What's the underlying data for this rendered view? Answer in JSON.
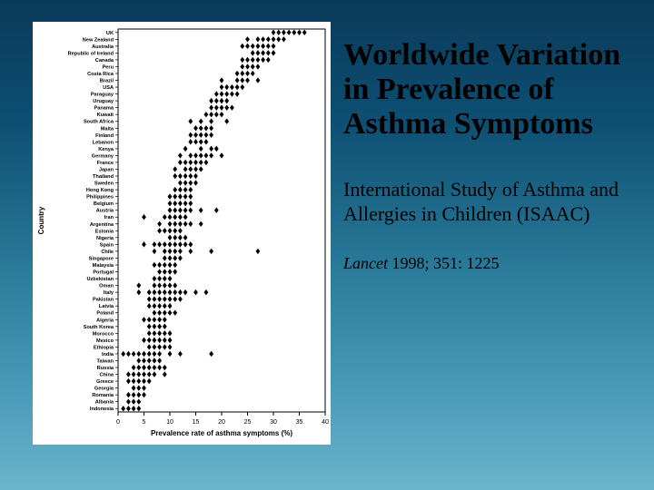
{
  "title": "Worldwide Variation in Prevalence of Asthma Symptoms",
  "subtitle": "International Study of Asthma and Allergies in Children (ISAAC)",
  "citation_journal": "Lancet",
  "citation_rest": " 1998; 351: 1225",
  "chart": {
    "type": "scatter",
    "xlabel": "Prevalence rate of asthma symptoms (%)",
    "ylabel": "Country",
    "xlim": [
      0,
      40
    ],
    "xtick_step": 5,
    "xticks": [
      0,
      5,
      10,
      15,
      20,
      25,
      30,
      35,
      40
    ],
    "label_fontsize": 8,
    "tick_fontsize": 7,
    "country_fontsize": 5.6,
    "marker": "diamond",
    "marker_size": 3.2,
    "marker_color": "#000000",
    "axis_color": "#000000",
    "background_color": "#ffffff",
    "countries": [
      "UK",
      "New Zealand",
      "Australia",
      "Republic of Ireland",
      "Canada",
      "Peru",
      "Costa Rica",
      "Brazil",
      "USA",
      "Paraguay",
      "Uruguay",
      "Panama",
      "Kuwait",
      "South Africa",
      "Malta",
      "Finland",
      "Lebanon",
      "Kenya",
      "Germany",
      "France",
      "Japan",
      "Thailand",
      "Sweden",
      "Hong Kong",
      "Philippines",
      "Belgium",
      "Austria",
      "Iran",
      "Argentina",
      "Estonia",
      "Nigeria",
      "Spain",
      "Chile",
      "Singapore",
      "Malaysia",
      "Portugal",
      "Uzbekistan",
      "Oman",
      "Italy",
      "Pakistan",
      "Latvia",
      "Poland",
      "Algeria",
      "South Korea",
      "Morocco",
      "Mexico",
      "Ethiopia",
      "India",
      "Taiwan",
      "Russia",
      "China",
      "Greece",
      "Georgia",
      "Romania",
      "Albania",
      "Indonesia"
    ],
    "points": [
      [
        30,
        31,
        32,
        33,
        34,
        35,
        36
      ],
      [
        25,
        27,
        28,
        29,
        30,
        31,
        32
      ],
      [
        24,
        25,
        26,
        27,
        28,
        29,
        30
      ],
      [
        26,
        27,
        28,
        29,
        30
      ],
      [
        24,
        25,
        26,
        27,
        28,
        29
      ],
      [
        24,
        25,
        26,
        27
      ],
      [
        23,
        24,
        25,
        26
      ],
      [
        20,
        23,
        24,
        25,
        27
      ],
      [
        20,
        21,
        22,
        23,
        24
      ],
      [
        19,
        20,
        21,
        22,
        23
      ],
      [
        18,
        19,
        20,
        21
      ],
      [
        18,
        19,
        20,
        21,
        22
      ],
      [
        17,
        18,
        19,
        20
      ],
      [
        14,
        16,
        18,
        21
      ],
      [
        15,
        16,
        17,
        18
      ],
      [
        14,
        15,
        16,
        17,
        18
      ],
      [
        14,
        15,
        16,
        17
      ],
      [
        13,
        16,
        18,
        19
      ],
      [
        12,
        14,
        15,
        16,
        17,
        18,
        20
      ],
      [
        12,
        13,
        14,
        15,
        16,
        17
      ],
      [
        11,
        13,
        14,
        15,
        16
      ],
      [
        11,
        12,
        13,
        14,
        15
      ],
      [
        12,
        13,
        14,
        15
      ],
      [
        11,
        12,
        13,
        14
      ],
      [
        10,
        11,
        12,
        13,
        14
      ],
      [
        10,
        11,
        12,
        13,
        14
      ],
      [
        10,
        11,
        12,
        13,
        14,
        16,
        19
      ],
      [
        5,
        9,
        10,
        11,
        12,
        13
      ],
      [
        8,
        10,
        11,
        12,
        13,
        14,
        16
      ],
      [
        8,
        9,
        10,
        11,
        12
      ],
      [
        10,
        11,
        12,
        13
      ],
      [
        5,
        7,
        8,
        9,
        10,
        11,
        12,
        13,
        14
      ],
      [
        7,
        9,
        10,
        11,
        12,
        14,
        18,
        27
      ],
      [
        9,
        10,
        11,
        12
      ],
      [
        7,
        8,
        9,
        10,
        11
      ],
      [
        8,
        9,
        10,
        11
      ],
      [
        7,
        8,
        9,
        10
      ],
      [
        4,
        7,
        8,
        9,
        10,
        11
      ],
      [
        4,
        6,
        7,
        8,
        9,
        10,
        11,
        12,
        13,
        15,
        17
      ],
      [
        6,
        7,
        8,
        9,
        10,
        11,
        12
      ],
      [
        6,
        7,
        8,
        9,
        10
      ],
      [
        7,
        8,
        9,
        10,
        11
      ],
      [
        5,
        6,
        7,
        8,
        9
      ],
      [
        6,
        7,
        8,
        9
      ],
      [
        6,
        7,
        8,
        9,
        10
      ],
      [
        5,
        6,
        7,
        8,
        9,
        10
      ],
      [
        6,
        7,
        8,
        9,
        10
      ],
      [
        1,
        2,
        3,
        4,
        5,
        6,
        7,
        8,
        10,
        12,
        18
      ],
      [
        4,
        5,
        6,
        7,
        8
      ],
      [
        3,
        4,
        5,
        6,
        7,
        8,
        9
      ],
      [
        2,
        3,
        4,
        5,
        6,
        7,
        9
      ],
      [
        2,
        3,
        4,
        5,
        6
      ],
      [
        3,
        4,
        5
      ],
      [
        2,
        3,
        4,
        5
      ],
      [
        2,
        3,
        4
      ],
      [
        1,
        2,
        3,
        4
      ]
    ]
  }
}
